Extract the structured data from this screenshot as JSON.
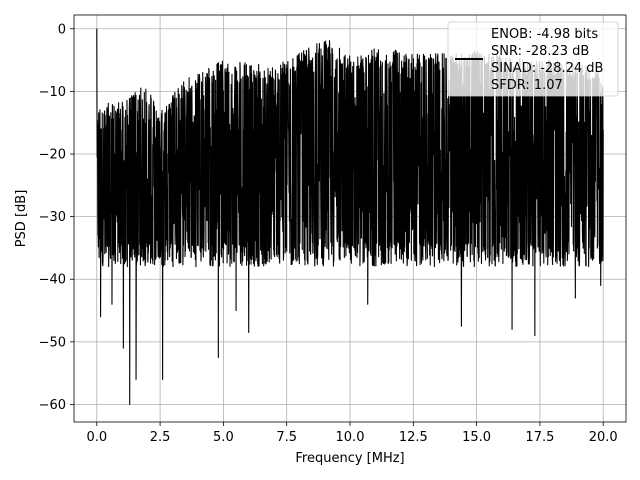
{
  "chart_data": {
    "type": "line",
    "title": "",
    "xlabel": "Frequency [MHz]",
    "ylabel": "PSD [dB]",
    "xlim": [
      -0.9,
      20.9
    ],
    "ylim": [
      -62.8,
      2.2
    ],
    "xticks": [
      0.0,
      2.5,
      5.0,
      7.5,
      10.0,
      12.5,
      15.0,
      17.5,
      20.0
    ],
    "xtick_labels": [
      "0.0",
      "2.5",
      "5.0",
      "7.5",
      "10.0",
      "12.5",
      "15.0",
      "17.5",
      "20.0"
    ],
    "yticks": [
      0,
      -10,
      -20,
      -30,
      -40,
      -50,
      -60
    ],
    "ytick_labels": [
      "0",
      "−10",
      "−20",
      "−30",
      "−40",
      "−50",
      "−60"
    ],
    "grid": true,
    "legend": {
      "placement": "top-right",
      "entries": [
        "ENOB: -4.98 bits",
        "SNR: -28.23 dB",
        "SINAD: -28.24 dB",
        "SFDR: 1.07"
      ]
    },
    "series": [
      {
        "color": "#000000",
        "x_range": [
          0,
          20
        ],
        "summary": {
          "peak": {
            "x": 0.0,
            "y": 0.0
          },
          "min": {
            "x": 1.3,
            "y": -60.0
          },
          "notable_dips": [
            {
              "x": 0.15,
              "y": -46
            },
            {
              "x": 0.6,
              "y": -44
            },
            {
              "x": 1.05,
              "y": -51
            },
            {
              "x": 1.55,
              "y": -56
            },
            {
              "x": 2.6,
              "y": -56
            },
            {
              "x": 4.8,
              "y": -52.5
            },
            {
              "x": 5.5,
              "y": -45
            },
            {
              "x": 6.0,
              "y": -48.5
            },
            {
              "x": 10.7,
              "y": -44
            },
            {
              "x": 14.4,
              "y": -47.5
            },
            {
              "x": 16.4,
              "y": -48
            },
            {
              "x": 17.3,
              "y": -49
            },
            {
              "x": 18.9,
              "y": -43
            },
            {
              "x": 19.9,
              "y": -41
            }
          ],
          "envelope_top": [
            {
              "x": 0.2,
              "y": -12
            },
            {
              "x": 1.0,
              "y": -11.5
            },
            {
              "x": 1.9,
              "y": -9
            },
            {
              "x": 2.5,
              "y": -13
            },
            {
              "x": 3.5,
              "y": -8
            },
            {
              "x": 5.0,
              "y": -5
            },
            {
              "x": 7.0,
              "y": -6
            },
            {
              "x": 9.1,
              "y": -1.5
            },
            {
              "x": 10.0,
              "y": -4
            },
            {
              "x": 11.0,
              "y": -3
            },
            {
              "x": 13.0,
              "y": -4
            },
            {
              "x": 15.0,
              "y": -3.5
            },
            {
              "x": 17.0,
              "y": -5
            },
            {
              "x": 18.6,
              "y": -5
            },
            {
              "x": 20.0,
              "y": -7
            }
          ],
          "typical_floor": -35
        }
      }
    ]
  }
}
